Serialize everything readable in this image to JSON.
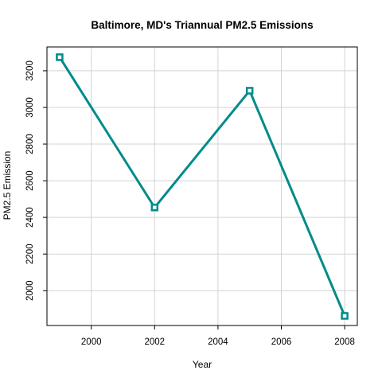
{
  "chart_data": {
    "type": "line",
    "title": "Baltimore, MD's Triannual PM2.5 Emissions",
    "xlabel": "Year",
    "ylabel": "PM2.5 Emission",
    "x": [
      1999,
      2002,
      2005,
      2008
    ],
    "series": [
      {
        "values": [
          3274.18,
          2453.92,
          3091.35,
          1862.28
        ],
        "color": "#008B8B",
        "marker": "open-square"
      }
    ],
    "xlim": [
      1998.6,
      2008.4
    ],
    "ylim": [
      1810,
      3330
    ],
    "x_ticks": [
      2000,
      2002,
      2004,
      2006,
      2008
    ],
    "y_ticks": [
      2000,
      2200,
      2400,
      2600,
      2800,
      3000,
      3200
    ],
    "x_tick_labels": [
      "2000",
      "2002",
      "2004",
      "2006",
      "2008"
    ],
    "y_tick_labels": [
      "2000",
      "2200",
      "2400",
      "2600",
      "2800",
      "3000",
      "3200"
    ],
    "grid": true,
    "grid_color": "#D3D3D3",
    "legend": "none"
  }
}
